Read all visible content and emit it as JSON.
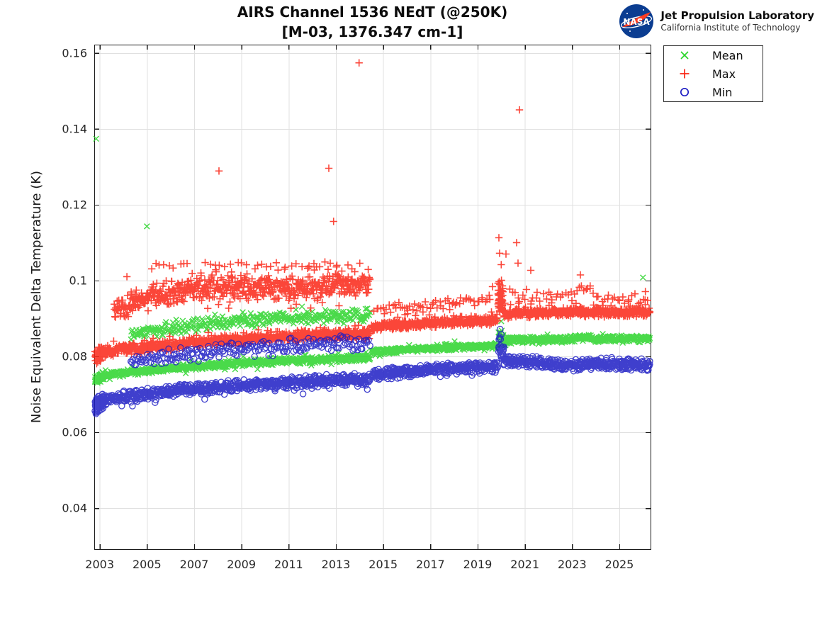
{
  "header": {
    "logo_title": "Jet Propulsion Laboratory",
    "logo_subtitle": "California Institute of Technology",
    "logo_badge_text": "NASA"
  },
  "chart_data": {
    "type": "scatter",
    "title": "AIRS Channel 1536 NEdT (@250K)",
    "subtitle": "[M-03, 1376.347 cm-1]",
    "ylabel": "Noise Equivalent Delta Temperature (K)",
    "x_axis": {
      "min": 2002.77,
      "max": 2026.32,
      "grid": true,
      "ticks": [
        2003,
        2005,
        2007,
        2009,
        2011,
        2013,
        2015,
        2017,
        2019,
        2021,
        2023,
        2025
      ],
      "tick_labels": [
        "2003",
        "2005",
        "2007",
        "2009",
        "2011",
        "2013",
        "2015",
        "2017",
        "2019",
        "2021",
        "2023",
        "2025"
      ]
    },
    "y_axis": {
      "min": 0.0292,
      "max": 0.1622,
      "grid": true,
      "ticks": [
        0.04,
        0.06,
        0.08,
        0.1,
        0.12,
        0.14,
        0.16
      ],
      "tick_labels": [
        "0.04",
        "0.06",
        "0.08",
        "0.1",
        "0.12",
        "0.14",
        "0.16"
      ]
    },
    "legend": {
      "position": "outside-top-right",
      "entries": [
        "Mean",
        "Max",
        "Min"
      ]
    },
    "colors": {
      "mean": "#2ad42a",
      "max": "#fa2616",
      "min": "#1d1dc4",
      "grid": "#e0e0e0",
      "axis": "#1a1a1a"
    },
    "series": [
      {
        "name": "Mean",
        "marker": "x",
        "color": "#2ad42a",
        "seed": 11,
        "bands": [
          {
            "t0": 2002.8,
            "t1": 2003.15,
            "n": 60,
            "spread": 0.0013,
            "anchors": [
              [
                2002.8,
                0.0738
              ],
              [
                2003.15,
                0.0749
              ]
            ]
          },
          {
            "t0": 2003.1,
            "t1": 2014.45,
            "n": 760,
            "spread": 0.001,
            "anchors": [
              [
                2003.1,
                0.0748
              ],
              [
                2004,
                0.0757
              ],
              [
                2006,
                0.0768
              ],
              [
                2008,
                0.0778
              ],
              [
                2010,
                0.0786
              ],
              [
                2012,
                0.0791
              ],
              [
                2014.45,
                0.0796
              ]
            ],
            "tail_up": 0.0018,
            "p_up": 0.07,
            "tail_down": 0.0015,
            "p_down": 0.05
          },
          {
            "t0": 2014.5,
            "t1": 2019.85,
            "n": 360,
            "spread": 0.0009,
            "anchors": [
              [
                2014.5,
                0.0812
              ],
              [
                2016,
                0.0818
              ],
              [
                2018,
                0.0824
              ],
              [
                2019.85,
                0.0828
              ]
            ],
            "tail_up": 0.0012,
            "p_up": 0.05,
            "tail_down": 0.0012,
            "p_down": 0.05
          },
          {
            "t0": 2020.1,
            "t1": 2026.3,
            "n": 420,
            "spread": 0.001,
            "anchors": [
              [
                2020.1,
                0.0842
              ],
              [
                2021,
                0.0845
              ],
              [
                2022,
                0.0843
              ],
              [
                2023,
                0.0846
              ],
              [
                2023.5,
                0.0851
              ],
              [
                2024,
                0.0846
              ],
              [
                2025,
                0.0846
              ],
              [
                2026.3,
                0.0848
              ]
            ],
            "tail_up": 0.0012,
            "p_up": 0.06,
            "tail_down": 0.0012,
            "p_down": 0.05
          },
          {
            "t0": 2004.3,
            "t1": 2014.45,
            "n": 340,
            "spread": 0.002,
            "anchors": [
              [
                2004.3,
                0.0855
              ],
              [
                2006,
                0.0875
              ],
              [
                2008,
                0.0888
              ],
              [
                2010,
                0.0898
              ],
              [
                2012,
                0.0902
              ],
              [
                2014.45,
                0.091
              ]
            ],
            "tail_up": 0.002,
            "p_up": 0.08
          },
          {
            "t0": 2019.88,
            "t1": 2020.1,
            "n": 18,
            "spread": 0.002,
            "anchors": [
              [
                2019.88,
                0.0858
              ],
              [
                2020.1,
                0.0848
              ]
            ]
          }
        ],
        "outliers": [
          [
            2002.85,
            0.1374
          ],
          [
            2005.0,
            0.1143
          ],
          [
            2020.0,
            0.0893
          ],
          [
            2026.0,
            0.1008
          ]
        ]
      },
      {
        "name": "Max",
        "marker": "plus",
        "color": "#fa2616",
        "seed": 29,
        "bands": [
          {
            "t0": 2002.8,
            "t1": 2003.15,
            "n": 60,
            "spread": 0.0022,
            "anchors": [
              [
                2002.8,
                0.08
              ],
              [
                2003.15,
                0.081
              ]
            ]
          },
          {
            "t0": 2003.1,
            "t1": 2014.45,
            "n": 760,
            "spread": 0.0016,
            "anchors": [
              [
                2003.1,
                0.081
              ],
              [
                2004,
                0.0818
              ],
              [
                2006,
                0.083
              ],
              [
                2008,
                0.0841
              ],
              [
                2010,
                0.0849
              ],
              [
                2012,
                0.0855
              ],
              [
                2014.45,
                0.0861
              ]
            ],
            "tail_up": 0.003,
            "p_up": 0.12
          },
          {
            "t0": 2003.6,
            "t1": 2014.45,
            "n": 620,
            "spread": 0.0036,
            "anchors": [
              [
                2003.6,
                0.092
              ],
              [
                2004.5,
                0.095
              ],
              [
                2005.5,
                0.0965
              ],
              [
                2007,
                0.0977
              ],
              [
                2008.5,
                0.0983
              ],
              [
                2010,
                0.0979
              ],
              [
                2012,
                0.098
              ],
              [
                2013.5,
                0.0988
              ],
              [
                2014.45,
                0.0992
              ]
            ],
            "tail_up": 0.006,
            "p_up": 0.16,
            "tail_down": 0.005,
            "p_down": 0.2
          },
          {
            "t0": 2005,
            "t1": 2014.4,
            "n": 45,
            "spread": 0.0022,
            "anchors": [
              [
                2005,
                0.1035
              ],
              [
                2009,
                0.1042
              ],
              [
                2014.4,
                0.104
              ]
            ]
          },
          {
            "t0": 2014.5,
            "t1": 2019.85,
            "n": 370,
            "spread": 0.0013,
            "anchors": [
              [
                2014.5,
                0.0877
              ],
              [
                2015,
                0.088
              ],
              [
                2017,
                0.0887
              ],
              [
                2019,
                0.0893
              ],
              [
                2019.85,
                0.0896
              ]
            ],
            "tail_up": 0.004,
            "p_up": 0.09
          },
          {
            "t0": 2014.6,
            "t1": 2019.6,
            "n": 60,
            "spread": 0.0018,
            "anchors": [
              [
                2014.6,
                0.0925
              ],
              [
                2017,
                0.0935
              ],
              [
                2019.6,
                0.0952
              ]
            ]
          },
          {
            "t0": 2019.86,
            "t1": 2020.08,
            "n": 55,
            "spread": 0.0055,
            "anchors": [
              [
                2019.86,
                0.096
              ],
              [
                2020.08,
                0.0945
              ]
            ]
          },
          {
            "t0": 2020.1,
            "t1": 2026.3,
            "n": 430,
            "spread": 0.0014,
            "anchors": [
              [
                2020.1,
                0.0912
              ],
              [
                2021,
                0.0914
              ],
              [
                2022,
                0.0916
              ],
              [
                2023,
                0.0919
              ],
              [
                2024,
                0.0917
              ],
              [
                2025,
                0.0915
              ],
              [
                2026.3,
                0.0918
              ]
            ],
            "tail_up": 0.0035,
            "p_up": 0.09
          },
          {
            "t0": 2020.3,
            "t1": 2026.25,
            "n": 55,
            "spread": 0.0022,
            "anchors": [
              [
                2020.3,
                0.096
              ],
              [
                2021.5,
                0.0955
              ],
              [
                2022.5,
                0.096
              ],
              [
                2023.3,
                0.0985
              ],
              [
                2023.8,
                0.0975
              ],
              [
                2024.5,
                0.0945
              ],
              [
                2025.5,
                0.095
              ],
              [
                2026.25,
                0.096
              ]
            ]
          }
        ],
        "outliers": [
          [
            2008.05,
            0.1289
          ],
          [
            2012.7,
            0.1296
          ],
          [
            2012.9,
            0.1156
          ],
          [
            2013.98,
            0.1574
          ],
          [
            2019.63,
            0.0984
          ],
          [
            2019.9,
            0.1113
          ],
          [
            2019.93,
            0.1072
          ],
          [
            2020.0,
            0.1042
          ],
          [
            2020.2,
            0.107
          ],
          [
            2020.65,
            0.11
          ],
          [
            2020.71,
            0.1046
          ],
          [
            2020.77,
            0.145
          ],
          [
            2021.25,
            0.1027
          ],
          [
            2023.35,
            0.1015
          ],
          [
            2023.6,
            0.0977
          ],
          [
            2026.1,
            0.0971
          ]
        ]
      },
      {
        "name": "Min",
        "marker": "circle",
        "color": "#1d1dc4",
        "seed": 47,
        "bands": [
          {
            "t0": 2002.8,
            "t1": 2003.15,
            "n": 70,
            "spread": 0.0026,
            "anchors": [
              [
                2002.8,
                0.0668
              ],
              [
                2003.15,
                0.0684
              ]
            ]
          },
          {
            "t0": 2003.1,
            "t1": 2014.45,
            "n": 800,
            "spread": 0.0017,
            "anchors": [
              [
                2003.1,
                0.0684
              ],
              [
                2004,
                0.0695
              ],
              [
                2005,
                0.0702
              ],
              [
                2006,
                0.0709
              ],
              [
                2008,
                0.0719
              ],
              [
                2010,
                0.0728
              ],
              [
                2012,
                0.0735
              ],
              [
                2014.45,
                0.0741
              ]
            ],
            "tail_down": 0.0028,
            "p_down": 0.1
          },
          {
            "t0": 2004.3,
            "t1": 2014.45,
            "n": 230,
            "spread": 0.0024,
            "anchors": [
              [
                2004.3,
                0.0788
              ],
              [
                2006,
                0.08
              ],
              [
                2008,
                0.0815
              ],
              [
                2010,
                0.0824
              ],
              [
                2012,
                0.083
              ],
              [
                2014.45,
                0.0838
              ]
            ]
          },
          {
            "t0": 2014.5,
            "t1": 2019.85,
            "n": 390,
            "spread": 0.0017,
            "anchors": [
              [
                2014.5,
                0.0752
              ],
              [
                2016,
                0.0761
              ],
              [
                2018,
                0.0769
              ],
              [
                2019.85,
                0.0773
              ]
            ],
            "tail_down": 0.0022,
            "p_down": 0.08
          },
          {
            "t0": 2019.88,
            "t1": 2020.12,
            "n": 30,
            "spread": 0.0035,
            "anchors": [
              [
                2019.88,
                0.0828
              ],
              [
                2020.12,
                0.0818
              ]
            ]
          },
          {
            "t0": 2020.1,
            "t1": 2026.3,
            "n": 450,
            "spread": 0.0018,
            "anchors": [
              [
                2020.1,
                0.0788
              ],
              [
                2021,
                0.0786
              ],
              [
                2022,
                0.078
              ],
              [
                2022.8,
                0.0776
              ],
              [
                2023.5,
                0.0778
              ],
              [
                2024.5,
                0.0781
              ],
              [
                2025.5,
                0.0778
              ],
              [
                2026.3,
                0.0779
              ]
            ],
            "tail_down": 0.0022,
            "p_down": 0.08
          }
        ],
        "outliers": [
          [
            2019.9,
            0.0845
          ],
          [
            2019.95,
            0.0872
          ],
          [
            2020.0,
            0.0858
          ]
        ]
      }
    ]
  }
}
